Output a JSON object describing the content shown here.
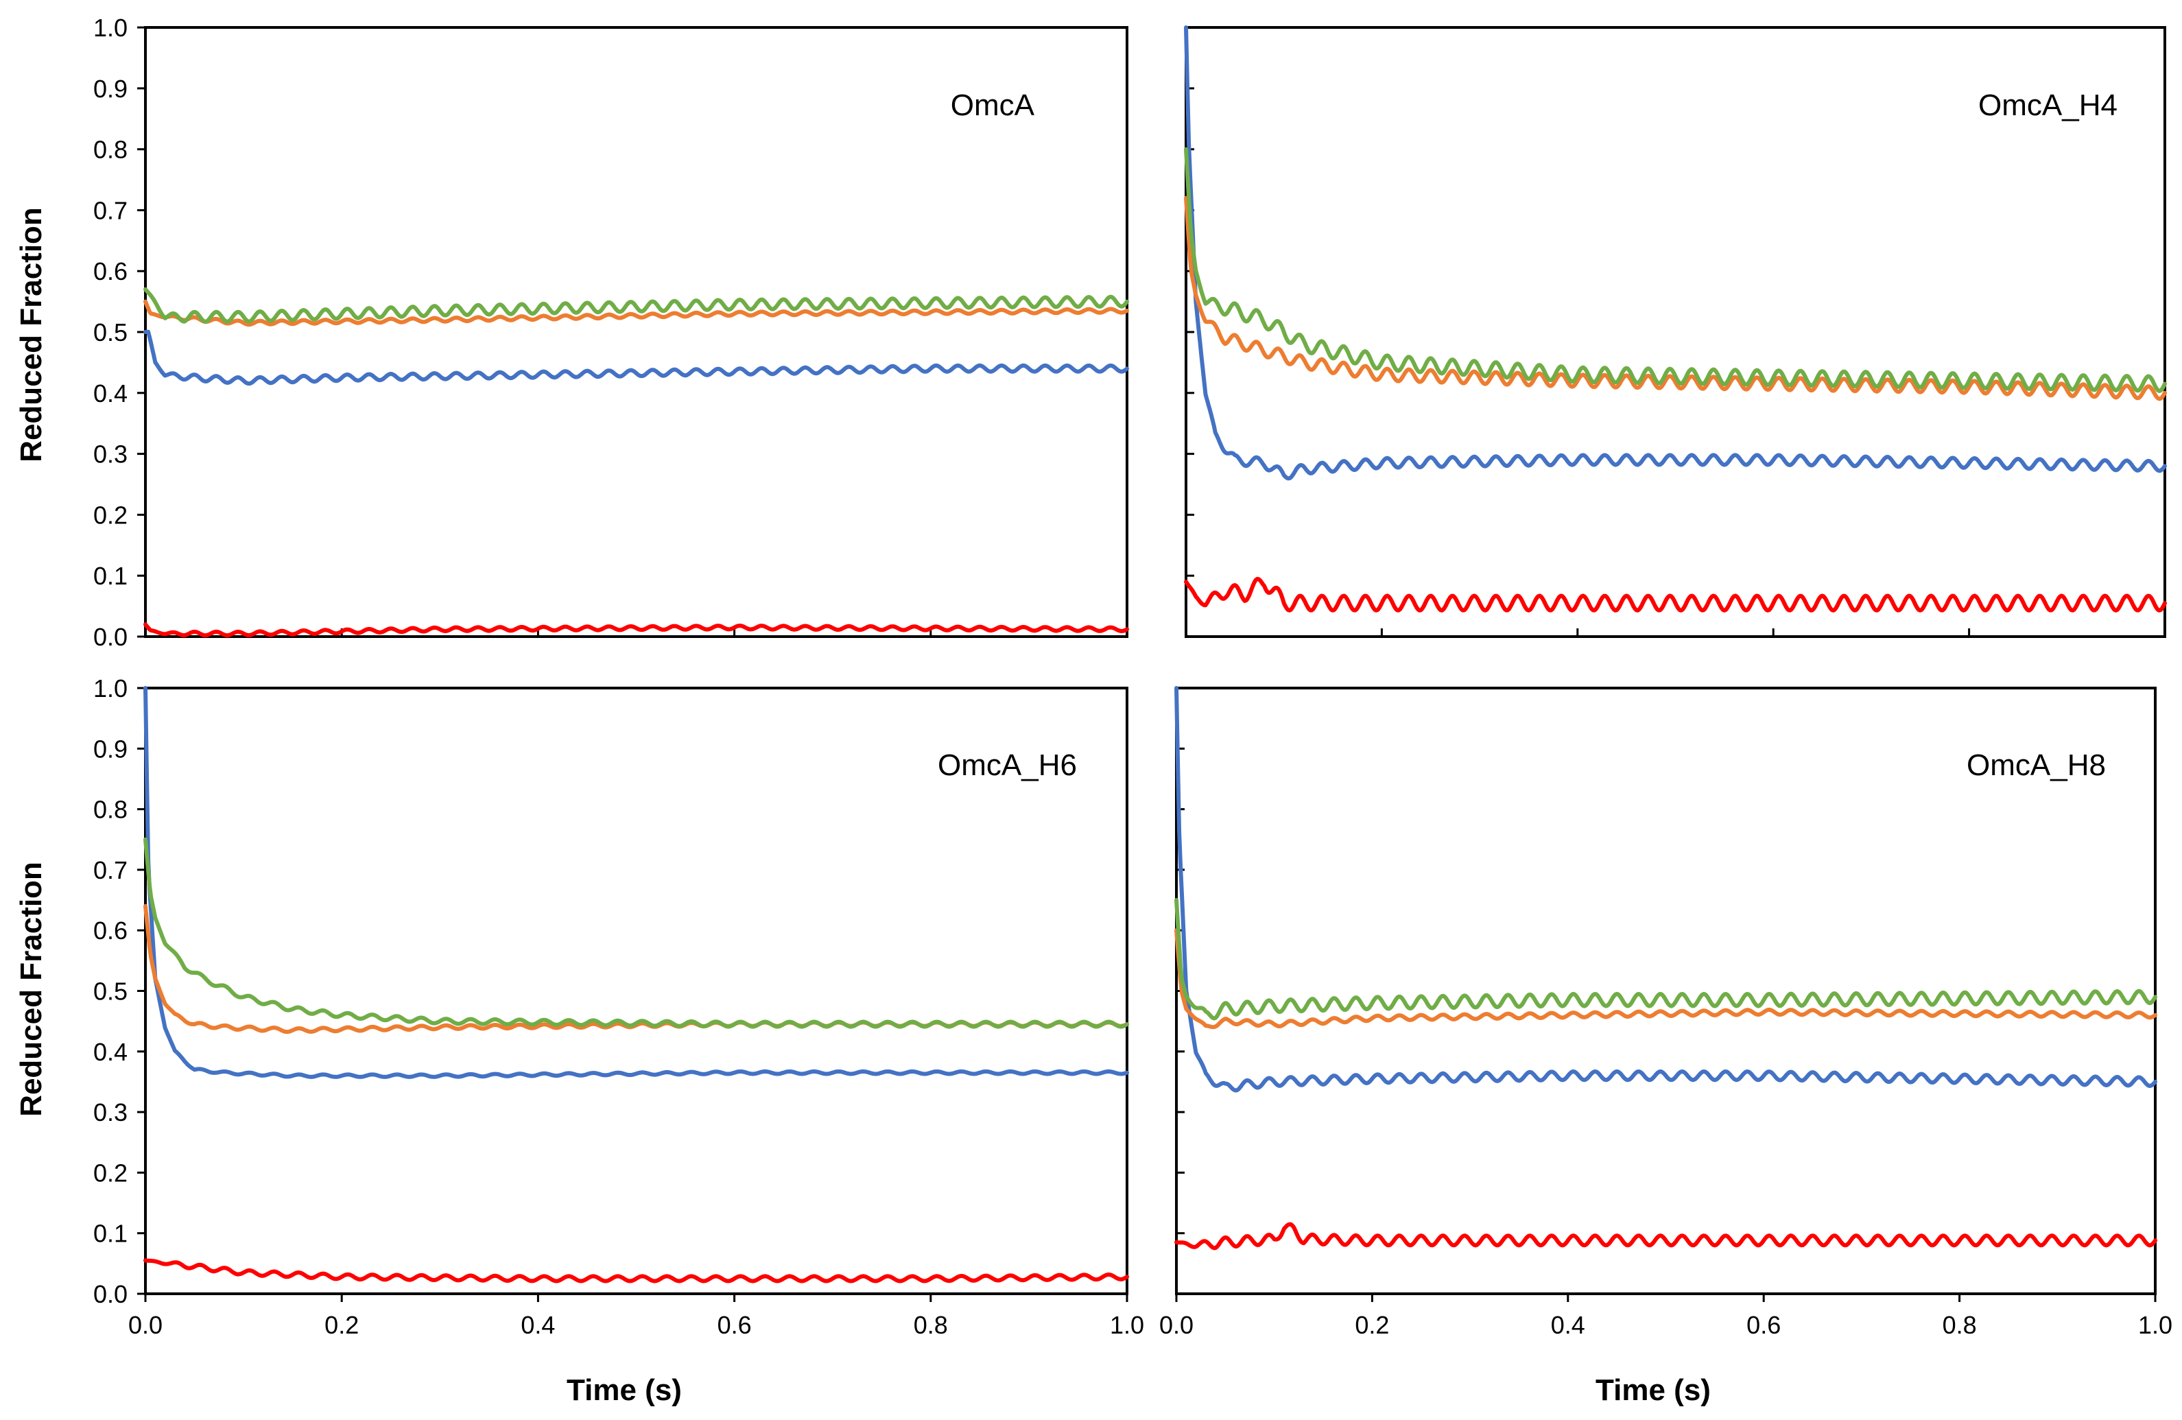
{
  "chart_data": [
    {
      "type": "line",
      "title": "OmcA",
      "xlabel": "",
      "ylabel": "Reduced Fraction",
      "xlim": [
        0.0,
        1.0
      ],
      "ylim": [
        0.0,
        1.0
      ],
      "y_ticks": [
        "0.0",
        "0.1",
        "0.2",
        "0.3",
        "0.4",
        "0.5",
        "0.6",
        "0.7",
        "0.8",
        "0.9",
        "1.0"
      ],
      "x_ticks": [],
      "series": [
        {
          "name": "blue",
          "color": "#4472C4",
          "x": [
            0.0,
            0.003,
            0.01,
            0.02,
            0.05,
            0.1,
            0.2,
            0.4,
            0.6,
            0.8,
            1.0
          ],
          "values": [
            0.5,
            0.5,
            0.45,
            0.43,
            0.425,
            0.42,
            0.425,
            0.43,
            0.435,
            0.44,
            0.44
          ],
          "osc_amp": 0.005,
          "osc_n": 45
        },
        {
          "name": "orange",
          "color": "#ED7D31",
          "x": [
            0.0,
            0.005,
            0.02,
            0.1,
            0.3,
            0.6,
            1.0
          ],
          "values": [
            0.55,
            0.53,
            0.525,
            0.515,
            0.52,
            0.53,
            0.535
          ],
          "osc_amp": 0.003,
          "osc_n": 45
        },
        {
          "name": "green",
          "color": "#70AD47",
          "x": [
            0.0,
            0.005,
            0.02,
            0.1,
            0.3,
            0.6,
            1.0
          ],
          "values": [
            0.57,
            0.56,
            0.525,
            0.525,
            0.535,
            0.545,
            0.55
          ],
          "osc_amp": 0.008,
          "osc_n": 45
        },
        {
          "name": "red",
          "color": "#FF0000",
          "x": [
            0.0,
            0.005,
            0.02,
            0.1,
            0.3,
            0.6,
            1.0
          ],
          "values": [
            0.02,
            0.01,
            0.005,
            0.005,
            0.012,
            0.015,
            0.012
          ],
          "osc_amp": 0.003,
          "osc_n": 45
        }
      ]
    },
    {
      "type": "line",
      "title": "OmcA_H4",
      "xlabel": "",
      "ylabel": "",
      "xlim": [
        0.0,
        1.0
      ],
      "ylim": [
        0.0,
        1.0
      ],
      "y_ticks": [],
      "x_ticks": [],
      "series": [
        {
          "name": "blue",
          "color": "#4472C4",
          "x": [
            0.0,
            0.003,
            0.01,
            0.02,
            0.03,
            0.05,
            0.08,
            0.1,
            0.12,
            0.2,
            0.4,
            0.6,
            0.8,
            1.0
          ],
          "values": [
            1.0,
            0.8,
            0.55,
            0.4,
            0.33,
            0.29,
            0.285,
            0.265,
            0.275,
            0.285,
            0.29,
            0.29,
            0.285,
            0.28
          ],
          "osc_amp": 0.008,
          "osc_n": 45
        },
        {
          "name": "orange",
          "color": "#ED7D31",
          "x": [
            0.0,
            0.005,
            0.01,
            0.02,
            0.04,
            0.08,
            0.12,
            0.2,
            0.4,
            0.6,
            0.8,
            1.0
          ],
          "values": [
            0.72,
            0.6,
            0.56,
            0.52,
            0.49,
            0.47,
            0.45,
            0.43,
            0.42,
            0.415,
            0.41,
            0.4
          ],
          "osc_amp": 0.01,
          "osc_n": 45
        },
        {
          "name": "green",
          "color": "#70AD47",
          "x": [
            0.0,
            0.005,
            0.01,
            0.02,
            0.04,
            0.08,
            0.12,
            0.2,
            0.4,
            0.6,
            0.8,
            1.0
          ],
          "values": [
            0.8,
            0.66,
            0.6,
            0.55,
            0.54,
            0.52,
            0.48,
            0.45,
            0.43,
            0.425,
            0.42,
            0.415
          ],
          "osc_amp": 0.012,
          "osc_n": 45
        },
        {
          "name": "red",
          "color": "#FF0000",
          "x": [
            0.0,
            0.01,
            0.02,
            0.04,
            0.06,
            0.08,
            0.09,
            0.1,
            0.2,
            0.6,
            1.0
          ],
          "values": [
            0.09,
            0.065,
            0.055,
            0.075,
            0.07,
            0.09,
            0.075,
            0.055,
            0.055,
            0.055,
            0.055
          ],
          "osc_amp": 0.012,
          "osc_n": 45
        }
      ]
    },
    {
      "type": "line",
      "title": "OmcA_H6",
      "xlabel": "Time (s)",
      "ylabel": "Reduced Fraction",
      "xlim": [
        0.0,
        1.0
      ],
      "ylim": [
        0.0,
        1.0
      ],
      "y_ticks": [
        "0.0",
        "0.1",
        "0.2",
        "0.3",
        "0.4",
        "0.5",
        "0.6",
        "0.7",
        "0.8",
        "0.9",
        "1.0"
      ],
      "x_ticks": [
        "0.0",
        "0.2",
        "0.4",
        "0.6",
        "0.8",
        "1.0"
      ],
      "series": [
        {
          "name": "blue",
          "color": "#4472C4",
          "x": [
            0.0,
            0.003,
            0.01,
            0.02,
            0.03,
            0.05,
            0.08,
            0.15,
            0.3,
            0.6,
            1.0
          ],
          "values": [
            1.0,
            0.7,
            0.52,
            0.44,
            0.4,
            0.37,
            0.365,
            0.36,
            0.36,
            0.365,
            0.365
          ],
          "osc_amp": 0.002,
          "osc_n": 40
        },
        {
          "name": "orange",
          "color": "#ED7D31",
          "x": [
            0.0,
            0.005,
            0.01,
            0.02,
            0.03,
            0.05,
            0.08,
            0.15,
            0.3,
            0.6,
            1.0
          ],
          "values": [
            0.64,
            0.56,
            0.52,
            0.48,
            0.46,
            0.445,
            0.44,
            0.435,
            0.44,
            0.445,
            0.445
          ],
          "osc_amp": 0.003,
          "osc_n": 40
        },
        {
          "name": "green",
          "color": "#70AD47",
          "x": [
            0.0,
            0.005,
            0.01,
            0.02,
            0.04,
            0.06,
            0.1,
            0.15,
            0.2,
            0.3,
            0.6,
            1.0
          ],
          "values": [
            0.75,
            0.66,
            0.62,
            0.58,
            0.54,
            0.52,
            0.49,
            0.47,
            0.46,
            0.45,
            0.445,
            0.445
          ],
          "osc_amp": 0.004,
          "osc_n": 40
        },
        {
          "name": "red",
          "color": "#FF0000",
          "x": [
            0.0,
            0.05,
            0.1,
            0.2,
            0.4,
            0.6,
            0.8,
            1.0
          ],
          "values": [
            0.055,
            0.045,
            0.035,
            0.028,
            0.025,
            0.025,
            0.025,
            0.028
          ],
          "osc_amp": 0.004,
          "osc_n": 40
        }
      ]
    },
    {
      "type": "line",
      "title": "OmcA_H8",
      "xlabel": "Time (s)",
      "ylabel": "",
      "xlim": [
        0.0,
        1.0
      ],
      "ylim": [
        0.0,
        1.0
      ],
      "y_ticks": [],
      "x_ticks": [
        "0.0",
        "0.2",
        "0.4",
        "0.6",
        "0.8",
        "1.0"
      ],
      "series": [
        {
          "name": "blue",
          "color": "#4472C4",
          "x": [
            0.0,
            0.003,
            0.01,
            0.02,
            0.03,
            0.05,
            0.07,
            0.1,
            0.2,
            0.4,
            0.6,
            0.8,
            1.0
          ],
          "values": [
            1.0,
            0.75,
            0.5,
            0.4,
            0.36,
            0.34,
            0.345,
            0.35,
            0.355,
            0.36,
            0.36,
            0.355,
            0.35
          ],
          "osc_amp": 0.007,
          "osc_n": 45
        },
        {
          "name": "orange",
          "color": "#ED7D31",
          "x": [
            0.0,
            0.005,
            0.01,
            0.03,
            0.05,
            0.1,
            0.2,
            0.4,
            0.6,
            1.0
          ],
          "values": [
            0.6,
            0.5,
            0.47,
            0.44,
            0.45,
            0.445,
            0.455,
            0.46,
            0.465,
            0.46
          ],
          "osc_amp": 0.004,
          "osc_n": 45
        },
        {
          "name": "green",
          "color": "#70AD47",
          "x": [
            0.0,
            0.005,
            0.01,
            0.03,
            0.05,
            0.1,
            0.2,
            0.4,
            0.6,
            1.0
          ],
          "values": [
            0.65,
            0.52,
            0.49,
            0.46,
            0.47,
            0.475,
            0.48,
            0.485,
            0.485,
            0.49
          ],
          "osc_amp": 0.01,
          "osc_n": 45
        },
        {
          "name": "red",
          "color": "#FF0000",
          "x": [
            0.0,
            0.02,
            0.05,
            0.1,
            0.11,
            0.12,
            0.13,
            0.2,
            0.6,
            1.0
          ],
          "values": [
            0.085,
            0.08,
            0.085,
            0.09,
            0.11,
            0.105,
            0.09,
            0.088,
            0.088,
            0.088
          ],
          "osc_amp": 0.008,
          "osc_n": 45
        }
      ]
    }
  ]
}
